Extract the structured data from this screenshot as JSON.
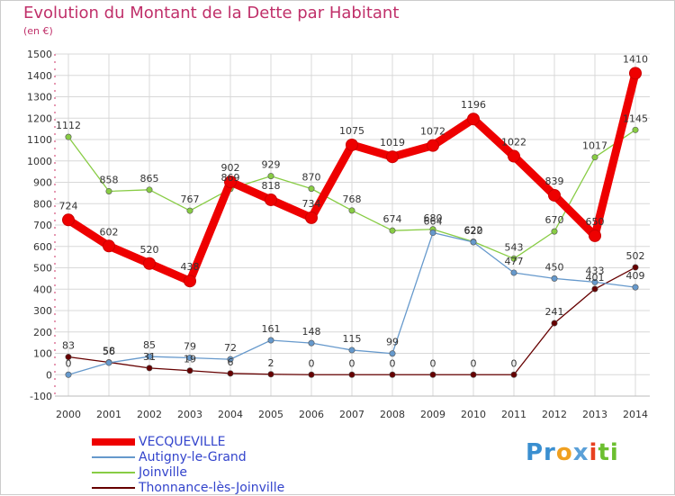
{
  "chart_data": {
    "type": "line",
    "title": "Evolution du Montant de la Dette par Habitant",
    "subtitle": "(en €)",
    "x": [
      "2000",
      "2001",
      "2002",
      "2003",
      "2004",
      "2005",
      "2006",
      "2007",
      "2008",
      "2009",
      "2010",
      "2011",
      "2012",
      "2013",
      "2014"
    ],
    "ylim": [
      -100,
      1500
    ],
    "yticks": [
      -100,
      0,
      100,
      200,
      300,
      400,
      500,
      600,
      700,
      800,
      900,
      1000,
      1100,
      1200,
      1300,
      1400,
      1500
    ],
    "grid": true,
    "legend_position": "bottom-left",
    "series": [
      {
        "name": "VECQUEVILLE",
        "color": "#ee0000",
        "values": [
          724,
          602,
          520,
          438,
          902,
          818,
          734,
          1075,
          1019,
          1072,
          1196,
          1022,
          839,
          650,
          1410
        ]
      },
      {
        "name": "Autigny-le-Grand",
        "color": "#6699cc",
        "values": [
          0,
          56,
          85,
          79,
          72,
          161,
          148,
          115,
          99,
          664,
          620,
          477,
          450,
          433,
          409
        ]
      },
      {
        "name": "Joinville",
        "color": "#88cc44",
        "values": [
          1112,
          858,
          865,
          767,
          869,
          929,
          870,
          768,
          674,
          680,
          622,
          543,
          670,
          1017,
          1145
        ]
      },
      {
        "name": "Thonnance-lès-Joinville",
        "color": "#660000",
        "values": [
          83,
          58,
          31,
          19,
          6,
          2,
          0,
          0,
          0,
          0,
          0,
          0,
          241,
          401,
          502
        ]
      }
    ]
  },
  "logo": {
    "p1": "Pr",
    "p2": "o",
    "p3": "x",
    "p4": "i",
    "p5": "ti"
  }
}
